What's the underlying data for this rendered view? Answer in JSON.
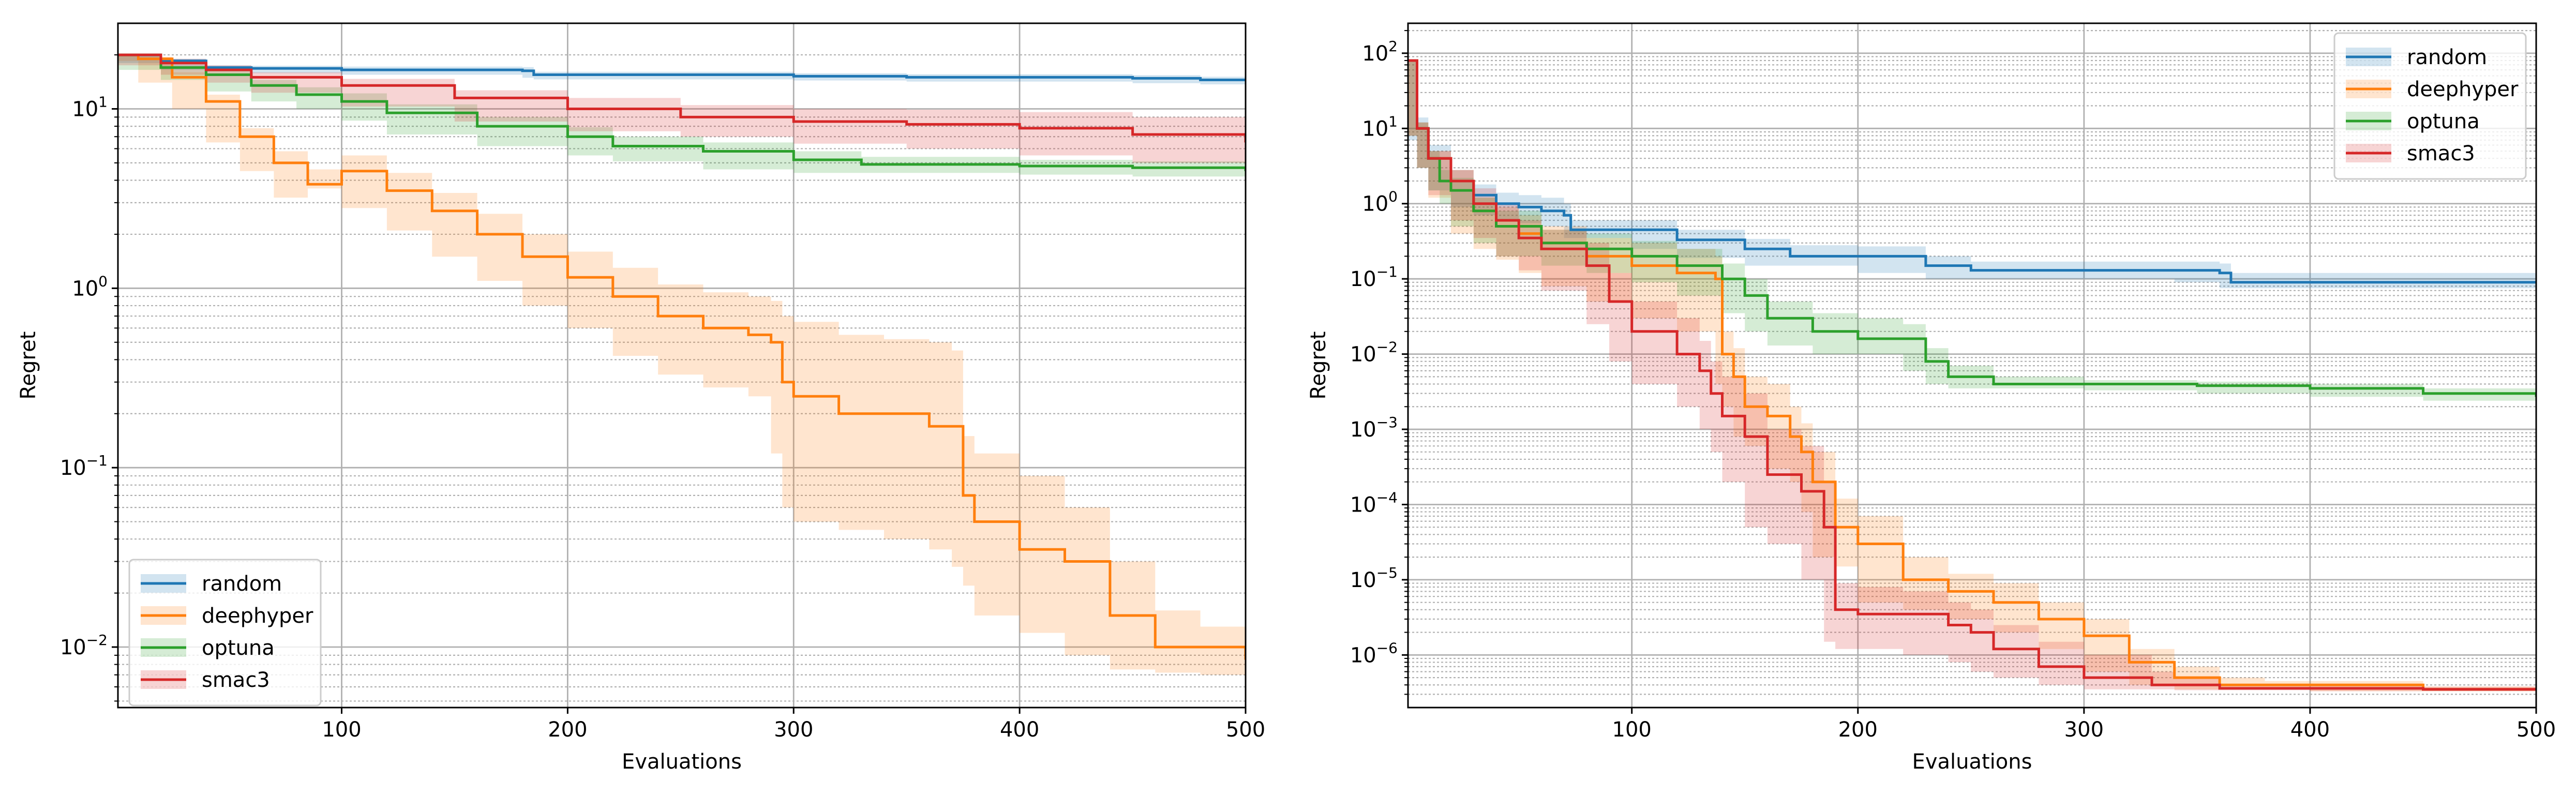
{
  "figure": {
    "colors": {
      "random": "#1f77b4",
      "deephyper": "#ff7f0e",
      "optuna": "#2ca02c",
      "smac3": "#d62728",
      "grid_major": "#b0b0b0",
      "grid_minor": "#b0b0b0"
    }
  },
  "chart_data": [
    {
      "type": "line",
      "xlabel": "Evaluations",
      "ylabel": "Regret",
      "xlim": [
        1,
        500
      ],
      "ylim": [
        0.0046,
        30
      ],
      "yscale": "log",
      "grid": true,
      "legend_position": "lower-left",
      "x_ticks": [
        {
          "value": 100,
          "label": "100"
        },
        {
          "value": 200,
          "label": "200"
        },
        {
          "value": 300,
          "label": "300"
        },
        {
          "value": 400,
          "label": "400"
        },
        {
          "value": 500,
          "label": "500"
        }
      ],
      "y_ticks": [
        {
          "value": 0.01,
          "base": "10",
          "exp": "−2"
        },
        {
          "value": 0.1,
          "base": "10",
          "exp": "−1"
        },
        {
          "value": 1,
          "base": "10",
          "exp": "0"
        },
        {
          "value": 10,
          "base": "10",
          "exp": "1"
        }
      ],
      "series": [
        {
          "name": "random",
          "color": "#1f77b4",
          "x": [
            1,
            20,
            40,
            60,
            100,
            180,
            185,
            300,
            350,
            450,
            480,
            500
          ],
          "y": [
            20,
            18.5,
            17,
            16.8,
            16.5,
            16.3,
            15.5,
            15.2,
            15,
            14.8,
            14.5,
            14.3
          ],
          "lower": [
            20,
            18,
            16.5,
            16.2,
            15.8,
            15.5,
            14.9,
            14.6,
            14.4,
            14.2,
            13.9,
            13.7
          ],
          "upper": [
            20,
            19,
            17.5,
            17.4,
            17.2,
            17.1,
            16.1,
            15.8,
            15.6,
            15.4,
            15.1,
            14.9
          ]
        },
        {
          "name": "deephyper",
          "color": "#ff7f0e",
          "x": [
            1,
            10,
            25,
            40,
            55,
            70,
            85,
            100,
            120,
            140,
            160,
            180,
            200,
            220,
            240,
            260,
            280,
            290,
            295,
            300,
            320,
            340,
            360,
            370,
            375,
            380,
            400,
            420,
            440,
            460,
            480,
            500
          ],
          "y": [
            20,
            19,
            15,
            11,
            7,
            5,
            3.8,
            4.5,
            3.5,
            2.7,
            2,
            1.5,
            1.15,
            0.9,
            0.7,
            0.6,
            0.55,
            0.5,
            0.3,
            0.25,
            0.2,
            0.2,
            0.17,
            0.17,
            0.07,
            0.05,
            0.035,
            0.03,
            0.015,
            0.01,
            0.01,
            0.0085
          ],
          "lower": [
            20,
            18.5,
            14,
            10,
            6.5,
            4.5,
            3.2,
            3.6,
            2.8,
            2.1,
            1.5,
            1.1,
            0.8,
            0.6,
            0.42,
            0.33,
            0.28,
            0.25,
            0.12,
            0.06,
            0.05,
            0.045,
            0.04,
            0.035,
            0.028,
            0.022,
            0.015,
            0.012,
            0.009,
            0.0075,
            0.0072,
            0.007
          ],
          "upper": [
            20,
            19.5,
            16,
            12,
            7.8,
            5.8,
            4.6,
            5.5,
            4.4,
            3.4,
            2.6,
            2,
            1.6,
            1.3,
            1.05,
            0.95,
            0.9,
            0.85,
            0.7,
            0.65,
            0.55,
            0.52,
            0.5,
            0.45,
            0.15,
            0.12,
            0.09,
            0.06,
            0.03,
            0.016,
            0.013,
            0.011
          ]
        },
        {
          "name": "optuna",
          "color": "#2ca02c",
          "x": [
            1,
            20,
            40,
            60,
            80,
            100,
            120,
            160,
            200,
            220,
            260,
            300,
            330,
            400,
            450,
            500
          ],
          "y": [
            20,
            17,
            15.5,
            13.5,
            12,
            11,
            9.5,
            8,
            7,
            6.2,
            5.8,
            5.2,
            4.9,
            4.8,
            4.7,
            4.5
          ],
          "lower": [
            20,
            16.5,
            14.5,
            12.5,
            11,
            10,
            8.6,
            7.2,
            6.2,
            5.5,
            5.1,
            4.6,
            4.4,
            4.4,
            4.3,
            4.2
          ],
          "upper": [
            20,
            17.5,
            16.5,
            14.5,
            13.2,
            12.2,
            10.6,
            9,
            7.9,
            7,
            6.5,
            5.8,
            5.4,
            5.2,
            5.1,
            4.9
          ]
        },
        {
          "name": "smac3",
          "color": "#d62728",
          "x": [
            1,
            20,
            40,
            60,
            100,
            150,
            200,
            250,
            300,
            350,
            400,
            450,
            500
          ],
          "y": [
            20,
            18,
            16.5,
            15,
            13.5,
            11.5,
            10,
            9,
            8.5,
            8.2,
            7.8,
            7.2,
            6.5
          ],
          "lower": [
            20,
            17.5,
            15.5,
            14,
            12.3,
            10.3,
            8.5,
            7.5,
            7,
            6.4,
            6,
            5.5,
            5
          ],
          "upper": [
            20,
            19,
            17.5,
            16,
            14.7,
            12.7,
            11.5,
            10.5,
            10,
            9.9,
            9.6,
            9,
            8.2
          ]
        }
      ]
    },
    {
      "type": "line",
      "xlabel": "Evaluations",
      "ylabel": "Regret",
      "xlim": [
        1,
        500
      ],
      "ylim": [
        2e-07,
        250
      ],
      "yscale": "log",
      "grid": true,
      "legend_position": "top-right",
      "x_ticks": [
        {
          "value": 100,
          "label": "100"
        },
        {
          "value": 200,
          "label": "200"
        },
        {
          "value": 300,
          "label": "300"
        },
        {
          "value": 400,
          "label": "400"
        },
        {
          "value": 500,
          "label": "500"
        }
      ],
      "y_ticks": [
        {
          "value": 1e-06,
          "base": "10",
          "exp": "−6"
        },
        {
          "value": 1e-05,
          "base": "10",
          "exp": "−5"
        },
        {
          "value": 0.0001,
          "base": "10",
          "exp": "−4"
        },
        {
          "value": 0.001,
          "base": "10",
          "exp": "−3"
        },
        {
          "value": 0.01,
          "base": "10",
          "exp": "−2"
        },
        {
          "value": 0.1,
          "base": "10",
          "exp": "−1"
        },
        {
          "value": 1,
          "base": "10",
          "exp": "0"
        },
        {
          "value": 10,
          "base": "10",
          "exp": "1"
        },
        {
          "value": 100,
          "base": "10",
          "exp": "2"
        }
      ],
      "series": [
        {
          "name": "random",
          "color": "#1f77b4",
          "x": [
            1,
            5,
            10,
            20,
            30,
            40,
            50,
            60,
            70,
            73,
            100,
            120,
            150,
            170,
            200,
            230,
            250,
            300,
            320,
            340,
            360,
            365,
            400,
            450,
            500
          ],
          "y": [
            80,
            10,
            4,
            2,
            1.3,
            1,
            0.9,
            0.8,
            0.7,
            0.45,
            0.45,
            0.33,
            0.25,
            0.2,
            0.2,
            0.15,
            0.13,
            0.13,
            0.13,
            0.13,
            0.12,
            0.09,
            0.09,
            0.09,
            0.09
          ],
          "lower": [
            80,
            7,
            3,
            1.5,
            0.9,
            0.7,
            0.6,
            0.55,
            0.5,
            0.35,
            0.35,
            0.25,
            0.19,
            0.15,
            0.15,
            0.12,
            0.1,
            0.1,
            0.1,
            0.1,
            0.09,
            0.075,
            0.075,
            0.075,
            0.075
          ],
          "upper": [
            80,
            14,
            6,
            2.8,
            1.8,
            1.4,
            1.3,
            1.2,
            1,
            0.6,
            0.6,
            0.45,
            0.34,
            0.28,
            0.27,
            0.2,
            0.17,
            0.17,
            0.17,
            0.17,
            0.16,
            0.12,
            0.12,
            0.12,
            0.12
          ]
        },
        {
          "name": "deephyper",
          "color": "#ff7f0e",
          "x": [
            1,
            5,
            10,
            20,
            30,
            40,
            50,
            60,
            80,
            100,
            120,
            137,
            140,
            145,
            150,
            160,
            170,
            175,
            180,
            190,
            200,
            220,
            240,
            260,
            280,
            300,
            320,
            340,
            360,
            380,
            400,
            450,
            500
          ],
          "y": [
            80,
            10,
            4,
            2,
            0.8,
            0.5,
            0.4,
            0.3,
            0.2,
            0.15,
            0.12,
            0.1,
            0.01,
            0.005,
            0.002,
            0.0015,
            0.0008,
            0.0005,
            0.0002,
            5e-05,
            3e-05,
            1e-05,
            7e-06,
            5e-06,
            3e-06,
            1.8e-06,
            8e-07,
            5e-07,
            4e-07,
            4e-07,
            4e-07,
            3.5e-07,
            3.5e-07
          ],
          "lower": [
            80,
            8,
            3,
            1.2,
            0.4,
            0.25,
            0.18,
            0.12,
            0.08,
            0.05,
            0.03,
            0.02,
            0.004,
            0.002,
            0.0008,
            0.0006,
            0.0003,
            0.0002,
            8e-05,
            2e-05,
            1.5e-05,
            5e-06,
            4e-06,
            3e-06,
            2e-06,
            1.2e-06,
            6e-07,
            4e-07,
            3.5e-07,
            3.5e-07,
            3.5e-07,
            3.3e-07,
            3.3e-07
          ],
          "upper": [
            80,
            12,
            5,
            2.8,
            1.2,
            0.9,
            0.7,
            0.5,
            0.35,
            0.3,
            0.25,
            0.2,
            0.02,
            0.012,
            0.005,
            0.004,
            0.002,
            0.0012,
            0.0005,
            0.00012,
            7e-05,
            2e-05,
            1.2e-05,
            9e-06,
            5e-06,
            3e-06,
            1.2e-06,
            7e-07,
            5e-07,
            4.5e-07,
            4.5e-07,
            3.8e-07,
            3.8e-07
          ]
        },
        {
          "name": "optuna",
          "color": "#2ca02c",
          "x": [
            1,
            5,
            10,
            15,
            20,
            30,
            40,
            60,
            80,
            100,
            120,
            140,
            150,
            160,
            180,
            200,
            220,
            230,
            240,
            260,
            300,
            350,
            400,
            450,
            500
          ],
          "y": [
            80,
            10,
            4,
            2,
            1.5,
            0.8,
            0.5,
            0.3,
            0.25,
            0.2,
            0.15,
            0.1,
            0.06,
            0.03,
            0.02,
            0.016,
            0.016,
            0.008,
            0.005,
            0.004,
            0.004,
            0.0038,
            0.0035,
            0.003,
            0.0027
          ],
          "lower": [
            80,
            8,
            3,
            1.5,
            1,
            0.5,
            0.3,
            0.2,
            0.15,
            0.12,
            0.09,
            0.06,
            0.035,
            0.02,
            0.013,
            0.01,
            0.01,
            0.006,
            0.004,
            0.0035,
            0.0035,
            0.0033,
            0.003,
            0.0027,
            0.0024
          ],
          "upper": [
            80,
            12,
            5,
            2.8,
            2.2,
            1.2,
            0.8,
            0.45,
            0.4,
            0.32,
            0.25,
            0.16,
            0.1,
            0.05,
            0.035,
            0.03,
            0.025,
            0.012,
            0.007,
            0.005,
            0.0045,
            0.0043,
            0.004,
            0.0035,
            0.0031
          ]
        },
        {
          "name": "smac3",
          "color": "#d62728",
          "x": [
            1,
            5,
            10,
            20,
            30,
            40,
            50,
            60,
            80,
            90,
            100,
            120,
            130,
            135,
            140,
            150,
            160,
            175,
            185,
            190,
            200,
            220,
            240,
            250,
            260,
            280,
            300,
            330,
            340,
            360,
            400,
            450,
            500
          ],
          "y": [
            80,
            10,
            4,
            2,
            1,
            0.6,
            0.35,
            0.25,
            0.15,
            0.05,
            0.02,
            0.01,
            0.006,
            0.003,
            0.0015,
            0.0008,
            0.00025,
            0.00015,
            5e-05,
            4e-06,
            3.5e-06,
            3.5e-06,
            2.5e-06,
            2e-06,
            1.2e-06,
            7e-07,
            5e-07,
            4e-07,
            4e-07,
            3.6e-07,
            3.6e-07,
            3.5e-07,
            3.5e-07
          ],
          "lower": [
            80,
            8,
            3,
            1.3,
            0.6,
            0.35,
            0.2,
            0.13,
            0.07,
            0.025,
            0.008,
            0.004,
            0.002,
            0.001,
            0.0005,
            0.0002,
            5e-05,
            3e-05,
            1e-05,
            1.5e-06,
            1.2e-06,
            1.2e-06,
            1e-06,
            8e-07,
            6e-07,
            5e-07,
            4e-07,
            3.5e-07,
            3.5e-07,
            3.4e-07,
            3.4e-07,
            3.3e-07,
            3.3e-07
          ],
          "upper": [
            80,
            12,
            5,
            2.8,
            1.6,
            1,
            0.6,
            0.45,
            0.3,
            0.12,
            0.05,
            0.03,
            0.015,
            0.008,
            0.005,
            0.003,
            0.001,
            0.0006,
            0.0002,
            9e-06,
            8e-06,
            7e-06,
            5e-06,
            4e-06,
            2.5e-06,
            1.5e-06,
            1e-06,
            6e-07,
            5e-07,
            4e-07,
            4e-07,
            3.8e-07,
            3.8e-07
          ]
        }
      ]
    }
  ]
}
